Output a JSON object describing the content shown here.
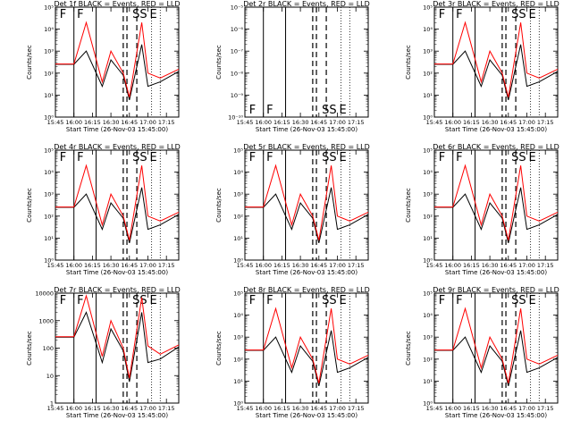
{
  "chart_data": [
    {
      "type": "line",
      "title": "Det 1f BLACK = Events, RED = LLD",
      "xlabel": "Start Time (26-Nov-03 15:45:00)",
      "ylabel": "Counts/sec",
      "x_ticks": [
        "15:45",
        "16:00",
        "16:15",
        "16:30",
        "16:45",
        "17:00",
        "17:15"
      ],
      "x_range": [
        "15:45",
        "17:25"
      ],
      "y_scale": "log",
      "ylim": [
        1,
        100000
      ],
      "y_ticks": [
        "10⁰",
        "10¹",
        "10²",
        "10³",
        "10⁴",
        "10⁵"
      ],
      "event_markers": [
        "F",
        "F",
        "SS",
        "E"
      ],
      "series": [
        {
          "color": "#000000",
          "values": [
            250,
            250,
            1000,
            25,
            400,
            80,
            6,
            2000,
            25,
            40,
            120
          ]
        },
        {
          "color": "#ff0000",
          "values": [
            260,
            260,
            20000,
            40,
            1000,
            100,
            8,
            20000,
            100,
            60,
            150
          ]
        }
      ]
    },
    {
      "type": "line",
      "title": "Det 2r BLACK = Events, RED = LLD",
      "xlabel": "Start Time (26-Nov-03 15:45:00)",
      "ylabel": "Counts/sec",
      "x_ticks": [
        "15:45",
        "16:00",
        "16:15",
        "16:30",
        "16:45",
        "17:00",
        "17:15"
      ],
      "x_range": [
        "15:45",
        "17:25"
      ],
      "y_scale": "log",
      "ylim": [
        1e-10,
        1e-05
      ],
      "y_ticks": [
        "10⁻¹⁰",
        "10⁻⁹",
        "10⁻⁸",
        "10⁻⁷",
        "10⁻⁶",
        "10⁻⁵"
      ],
      "event_markers": [
        "F",
        "F",
        "SS",
        "E"
      ],
      "series": []
    },
    {
      "type": "line",
      "title": "Det 3r BLACK = Events, RED = LLD",
      "xlabel": "Start Time (26-Nov-03 15:45:00)",
      "ylabel": "Counts/sec",
      "x_ticks": [
        "15:45",
        "16:00",
        "16:15",
        "16:30",
        "16:45",
        "17:00",
        "17:15"
      ],
      "x_range": [
        "15:45",
        "17:25"
      ],
      "y_scale": "log",
      "ylim": [
        1,
        100000
      ],
      "y_ticks": [
        "10⁰",
        "10¹",
        "10²",
        "10³",
        "10⁴",
        "10⁵"
      ],
      "event_markers": [
        "F",
        "F",
        "SS",
        "E"
      ],
      "series": [
        {
          "color": "#000000",
          "values": [
            250,
            250,
            1000,
            25,
            400,
            80,
            6,
            2000,
            25,
            40,
            120
          ]
        },
        {
          "color": "#ff0000",
          "values": [
            260,
            260,
            20000,
            40,
            1000,
            100,
            8,
            20000,
            100,
            60,
            150
          ]
        }
      ]
    },
    {
      "type": "line",
      "title": "Det 4r BLACK = Events, RED = LLD",
      "xlabel": "Start Time (26-Nov-03 15:45:00)",
      "ylabel": "Counts/sec",
      "x_ticks": [
        "15:45",
        "16:00",
        "16:15",
        "16:30",
        "16:45",
        "17:00",
        "17:15"
      ],
      "x_range": [
        "15:45",
        "17:25"
      ],
      "y_scale": "log",
      "ylim": [
        1,
        100000
      ],
      "y_ticks": [
        "10⁰",
        "10¹",
        "10²",
        "10³",
        "10⁴",
        "10⁵"
      ],
      "event_markers": [
        "F",
        "F",
        "SS",
        "E"
      ],
      "series": [
        {
          "color": "#000000",
          "values": [
            250,
            250,
            1000,
            25,
            400,
            80,
            6,
            2000,
            25,
            40,
            120
          ]
        },
        {
          "color": "#ff0000",
          "values": [
            260,
            260,
            20000,
            40,
            1000,
            100,
            8,
            20000,
            100,
            60,
            150
          ]
        }
      ]
    },
    {
      "type": "line",
      "title": "Det 5r BLACK = Events, RED = LLD",
      "xlabel": "Start Time (26-Nov-03 15:45:00)",
      "ylabel": "Counts/sec",
      "x_ticks": [
        "15:45",
        "16:00",
        "16:15",
        "16:30",
        "16:45",
        "17:00",
        "17:15"
      ],
      "x_range": [
        "15:45",
        "17:25"
      ],
      "y_scale": "log",
      "ylim": [
        1,
        100000
      ],
      "y_ticks": [
        "10⁰",
        "10¹",
        "10²",
        "10³",
        "10⁴",
        "10⁵"
      ],
      "event_markers": [
        "F",
        "F",
        "SS",
        "E"
      ],
      "series": [
        {
          "color": "#000000",
          "values": [
            250,
            250,
            1000,
            25,
            400,
            80,
            6,
            2000,
            25,
            40,
            120
          ]
        },
        {
          "color": "#ff0000",
          "values": [
            260,
            260,
            20000,
            40,
            1000,
            100,
            8,
            20000,
            100,
            60,
            150
          ]
        }
      ]
    },
    {
      "type": "line",
      "title": "Det 6r BLACK = Events, RED = LLD",
      "xlabel": "Start Time (26-Nov-03 15:45:00)",
      "ylabel": "Counts/sec",
      "x_ticks": [
        "15:45",
        "16:00",
        "16:15",
        "16:30",
        "16:45",
        "17:00",
        "17:15"
      ],
      "x_range": [
        "15:45",
        "17:25"
      ],
      "y_scale": "log",
      "ylim": [
        1,
        100000
      ],
      "y_ticks": [
        "10⁰",
        "10¹",
        "10²",
        "10³",
        "10⁴",
        "10⁵"
      ],
      "event_markers": [
        "F",
        "F",
        "SS",
        "E"
      ],
      "series": [
        {
          "color": "#000000",
          "values": [
            250,
            250,
            1000,
            25,
            400,
            80,
            6,
            2000,
            25,
            40,
            120
          ]
        },
        {
          "color": "#ff0000",
          "values": [
            260,
            260,
            20000,
            40,
            1000,
            100,
            8,
            20000,
            100,
            60,
            150
          ]
        }
      ]
    },
    {
      "type": "line",
      "title": "Det 7r BLACK = Events, RED = LLD",
      "xlabel": "Start Time (26-Nov-03 15:45:00)",
      "ylabel": "Counts/sec",
      "x_ticks": [
        "15:45",
        "16:00",
        "16:15",
        "16:30",
        "16:45",
        "17:00",
        "17:15"
      ],
      "x_range": [
        "15:45",
        "17:25"
      ],
      "y_scale": "log",
      "ylim": [
        1,
        10000
      ],
      "y_ticks": [
        "1",
        "10",
        "100",
        "1000",
        "10000"
      ],
      "event_markers": [
        "F",
        "F",
        "SS",
        "E"
      ],
      "series": [
        {
          "color": "#000000",
          "values": [
            250,
            250,
            2000,
            30,
            500,
            80,
            6,
            2000,
            30,
            40,
            110
          ]
        },
        {
          "color": "#ff0000",
          "values": [
            260,
            260,
            8000,
            50,
            1000,
            100,
            8,
            7000,
            120,
            60,
            130
          ]
        }
      ]
    },
    {
      "type": "line",
      "title": "Det 8r BLACK = Events, RED = LLD",
      "xlabel": "Start Time (26-Nov-03 15:45:00)",
      "ylabel": "Counts/sec",
      "x_ticks": [
        "15:45",
        "16:00",
        "16:15",
        "16:30",
        "16:45",
        "17:00",
        "17:15"
      ],
      "x_range": [
        "15:45",
        "17:25"
      ],
      "y_scale": "log",
      "ylim": [
        1,
        100000
      ],
      "y_ticks": [
        "10⁰",
        "10¹",
        "10²",
        "10³",
        "10⁴",
        "10⁵"
      ],
      "event_markers": [
        "F",
        "F",
        "SS",
        "E"
      ],
      "series": [
        {
          "color": "#000000",
          "values": [
            250,
            250,
            1000,
            25,
            400,
            80,
            6,
            2000,
            25,
            40,
            120
          ]
        },
        {
          "color": "#ff0000",
          "values": [
            260,
            260,
            20000,
            40,
            1000,
            100,
            8,
            20000,
            100,
            60,
            150
          ]
        }
      ]
    },
    {
      "type": "line",
      "title": "Det 9r BLACK = Events, RED = LLD",
      "xlabel": "Start Time (26-Nov-03 15:45:00)",
      "ylabel": "Counts/sec",
      "x_ticks": [
        "15:45",
        "16:00",
        "16:15",
        "16:30",
        "16:45",
        "17:00",
        "17:15"
      ],
      "x_range": [
        "15:45",
        "17:25"
      ],
      "y_scale": "log",
      "ylim": [
        1,
        100000
      ],
      "y_ticks": [
        "10⁰",
        "10¹",
        "10²",
        "10³",
        "10⁴",
        "10⁵"
      ],
      "event_markers": [
        "F",
        "F",
        "SS",
        "E"
      ],
      "series": [
        {
          "color": "#000000",
          "values": [
            250,
            250,
            1000,
            25,
            400,
            80,
            6,
            2000,
            25,
            40,
            120
          ]
        },
        {
          "color": "#ff0000",
          "values": [
            260,
            260,
            20000,
            40,
            1000,
            100,
            8,
            20000,
            100,
            60,
            150
          ]
        }
      ]
    }
  ]
}
